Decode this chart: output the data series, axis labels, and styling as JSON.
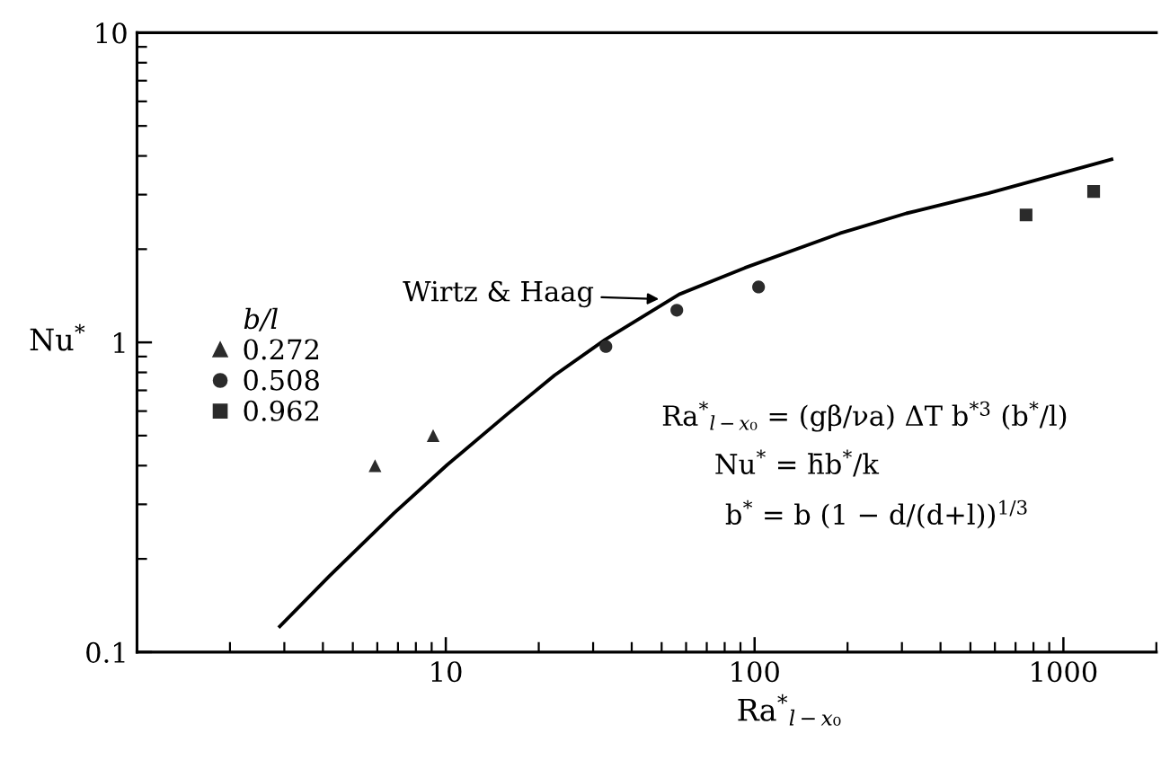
{
  "chart_data": {
    "type": "scatter",
    "xlabel": "Ra$^{*}$$_{l−x₀}$",
    "ylabel": "Nu$^{*}$",
    "legend_title": "b/l",
    "log": "xy",
    "xlim": [
      1,
      2000
    ],
    "ylim": [
      0.1,
      10
    ],
    "xticks": [
      10,
      100,
      1000
    ],
    "yticks": [
      0.1,
      1,
      10
    ],
    "legend": "left",
    "series": [
      {
        "name": "0.272",
        "color": "#2b2b2b",
        "marker": "triangle",
        "x": [
          5.9,
          9.1
        ],
        "values": [
          0.4,
          0.5
        ]
      },
      {
        "name": "0.508",
        "color": "#2b2b2b",
        "marker": "circle",
        "x": [
          33,
          56,
          103
        ],
        "values": [
          0.97,
          1.27,
          1.51
        ]
      },
      {
        "name": "0.962",
        "color": "#2b2b2b",
        "marker": "square",
        "x": [
          757,
          1253
        ],
        "values": [
          2.58,
          3.07
        ]
      },
      {
        "type": "line",
        "color": "#000000",
        "marker": "none",
        "line_style": "solid",
        "x": [
          2.9,
          4.2,
          6.8,
          10.1,
          15.8,
          22.5,
          32.8,
          57,
          93,
          189,
          310,
          571,
          1432
        ],
        "values": [
          0.121,
          0.176,
          0.281,
          0.402,
          0.586,
          0.783,
          1.02,
          1.43,
          1.74,
          2.25,
          2.61,
          3.03,
          3.9
        ]
      }
    ],
    "annotations": [
      {
        "text": "Wirtz & Haag",
        "x": 49,
        "y": 1.38
      },
      "Ra$^{*}$$_{l−x₀}$ = (gβ/νa) ΔT b$^{*3}$ (b$^{*}$/l)",
      "Nu$^{*}$ = h̄b$^{*}$/k",
      "b$^{*}$ = b (1 − d/(d+l))$^{1/3}$"
    ]
  }
}
